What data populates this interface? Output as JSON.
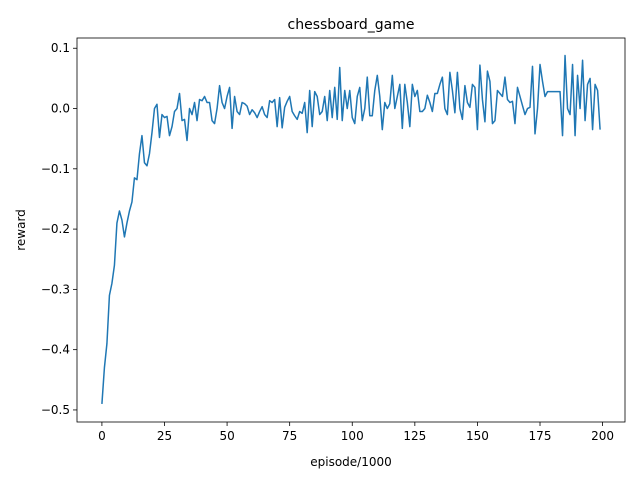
{
  "chart_data": {
    "type": "line",
    "title": "chessboard_game",
    "x_label": "episode/1000",
    "y_label": "reward",
    "color": "#1f77b4",
    "x": [
      0,
      1,
      2,
      3,
      4,
      5,
      6,
      7,
      8,
      9,
      10,
      11,
      12,
      13,
      14,
      15,
      16,
      17,
      18,
      19,
      20,
      21,
      22,
      23,
      24,
      25,
      26,
      27,
      28,
      29,
      30,
      31,
      32,
      33,
      34,
      35,
      36,
      37,
      38,
      39,
      40,
      41,
      42,
      43,
      44,
      45,
      46,
      47,
      48,
      49,
      50,
      51,
      52,
      53,
      54,
      55,
      56,
      57,
      58,
      59,
      60,
      61,
      62,
      63,
      64,
      65,
      66,
      67,
      68,
      69,
      70,
      71,
      72,
      73,
      74,
      75,
      76,
      77,
      78,
      79,
      80,
      81,
      82,
      83,
      84,
      85,
      86,
      87,
      88,
      89,
      90,
      91,
      92,
      93,
      94,
      95,
      96,
      97,
      98,
      99,
      100,
      101,
      102,
      103,
      104,
      105,
      106,
      107,
      108,
      109,
      110,
      111,
      112,
      113,
      114,
      115,
      116,
      117,
      118,
      119,
      120,
      121,
      122,
      123,
      124,
      125,
      126,
      127,
      128,
      129,
      130,
      131,
      132,
      133,
      134,
      135,
      136,
      137,
      138,
      139,
      140,
      141,
      142,
      143,
      144,
      145,
      146,
      147,
      148,
      149,
      150,
      151,
      152,
      153,
      154,
      155,
      156,
      157,
      158,
      159,
      160,
      161,
      162,
      163,
      164,
      165,
      166,
      167,
      168,
      169,
      170,
      171,
      172,
      173,
      174,
      175,
      176,
      177,
      178,
      179,
      180,
      181,
      182,
      183,
      184,
      185,
      186,
      187,
      188,
      189,
      190,
      191,
      192,
      193,
      194,
      195,
      196,
      197,
      198,
      199
    ],
    "values": [
      -0.49,
      -0.43,
      -0.39,
      -0.31,
      -0.29,
      -0.26,
      -0.19,
      -0.17,
      -0.185,
      -0.213,
      -0.19,
      -0.17,
      -0.155,
      -0.115,
      -0.118,
      -0.075,
      -0.045,
      -0.09,
      -0.095,
      -0.075,
      -0.04,
      0.0,
      0.007,
      -0.048,
      -0.01,
      -0.015,
      -0.013,
      -0.045,
      -0.03,
      -0.005,
      0.0,
      0.025,
      -0.02,
      -0.018,
      -0.053,
      0.0,
      -0.01,
      0.01,
      -0.02,
      0.015,
      0.013,
      0.02,
      0.01,
      0.01,
      -0.02,
      -0.025,
      0.0,
      0.038,
      0.01,
      0.0,
      0.02,
      0.035,
      -0.033,
      0.02,
      -0.005,
      -0.01,
      0.01,
      0.008,
      0.004,
      -0.01,
      -0.002,
      -0.007,
      -0.015,
      -0.005,
      0.003,
      -0.01,
      -0.015,
      0.013,
      0.01,
      0.015,
      -0.03,
      0.018,
      -0.032,
      0.002,
      0.012,
      0.02,
      -0.005,
      -0.012,
      -0.018,
      -0.005,
      -0.008,
      0.01,
      -0.04,
      0.03,
      -0.03,
      0.028,
      0.02,
      -0.01,
      -0.005,
      0.02,
      -0.02,
      0.03,
      -0.015,
      0.035,
      -0.018,
      0.068,
      -0.02,
      0.03,
      0.0,
      0.03,
      -0.015,
      -0.025,
      0.02,
      0.035,
      -0.02,
      0.0,
      0.052,
      -0.012,
      -0.012,
      0.03,
      0.055,
      0.02,
      -0.035,
      0.01,
      0.0,
      0.008,
      0.055,
      0.0,
      0.02,
      0.04,
      -0.033,
      0.04,
      0.01,
      -0.03,
      0.04,
      0.02,
      0.03,
      -0.005,
      -0.005,
      0.0,
      0.022,
      0.01,
      -0.005,
      0.025,
      0.025,
      0.04,
      0.052,
      0.0,
      -0.01,
      0.06,
      0.03,
      -0.007,
      0.06,
      0.0,
      -0.018,
      0.038,
      0.01,
      0.002,
      0.04,
      0.035,
      -0.035,
      0.072,
      0.015,
      -0.022,
      0.062,
      0.045,
      -0.025,
      -0.02,
      0.03,
      0.025,
      0.02,
      0.052,
      0.015,
      0.01,
      0.012,
      -0.025,
      0.035,
      0.02,
      0.005,
      -0.01,
      0.0,
      0.002,
      0.07,
      -0.042,
      0.0,
      0.073,
      0.045,
      0.02,
      0.028,
      0.028,
      0.028,
      0.028,
      0.028,
      0.028,
      -0.045,
      0.088,
      0.0,
      -0.01,
      0.073,
      -0.045,
      0.055,
      0.0,
      0.08,
      -0.02,
      0.04,
      0.05,
      -0.035,
      0.04,
      0.03,
      -0.035
    ],
    "xlim": [
      -9.95,
      208.95
    ],
    "ylim": [
      -0.52,
      0.117
    ],
    "xticks": [
      0,
      25,
      50,
      75,
      100,
      125,
      150,
      175,
      200
    ],
    "yticks": [
      {
        "value": -0.5,
        "label": "−0.5"
      },
      {
        "value": -0.4,
        "label": "−0.4"
      },
      {
        "value": -0.3,
        "label": "−0.3"
      },
      {
        "value": -0.2,
        "label": "−0.2"
      },
      {
        "value": -0.1,
        "label": "−0.1"
      },
      {
        "value": 0,
        "label": "0.0"
      },
      0.1
    ]
  }
}
